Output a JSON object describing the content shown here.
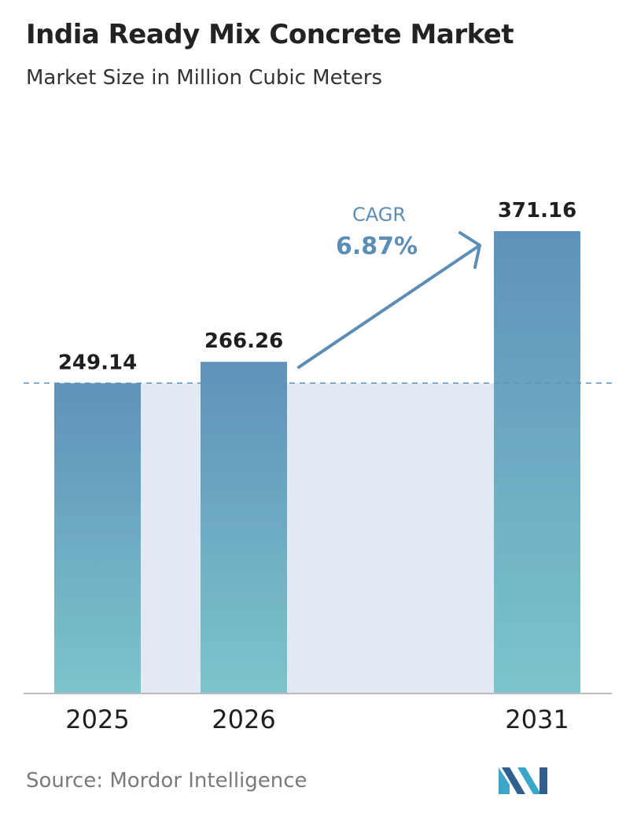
{
  "header": {
    "title": "India Ready Mix Concrete Market",
    "subtitle": "Market Size in Million Cubic Meters"
  },
  "chart_data": {
    "type": "bar",
    "categories": [
      "2025",
      "2026",
      "2031"
    ],
    "values": [
      249.14,
      266.26,
      371.16
    ],
    "value_labels": [
      "249.14",
      "266.26",
      "371.16"
    ],
    "title": "India Ready Mix Concrete Market",
    "subtitle": "Market Size in Million Cubic Meters",
    "xlabel": "",
    "ylabel": "",
    "ylim": [
      0,
      371.16
    ],
    "grid": false,
    "legend": "none",
    "annotations": {
      "cagr_label": "CAGR",
      "cagr_value": "6.87%"
    },
    "colors": {
      "bar_top": "#5f92ba",
      "bar_bottom": "#7cc4cb",
      "shade": "#e1e9f2",
      "reference_line": "#5f92ba",
      "cagr": "#5b8db5",
      "axis": "#bbbbbb"
    }
  },
  "footer": {
    "source": "Source:  Mordor Intelligence",
    "logo_icon": "mordor-intelligence-logo-icon"
  }
}
